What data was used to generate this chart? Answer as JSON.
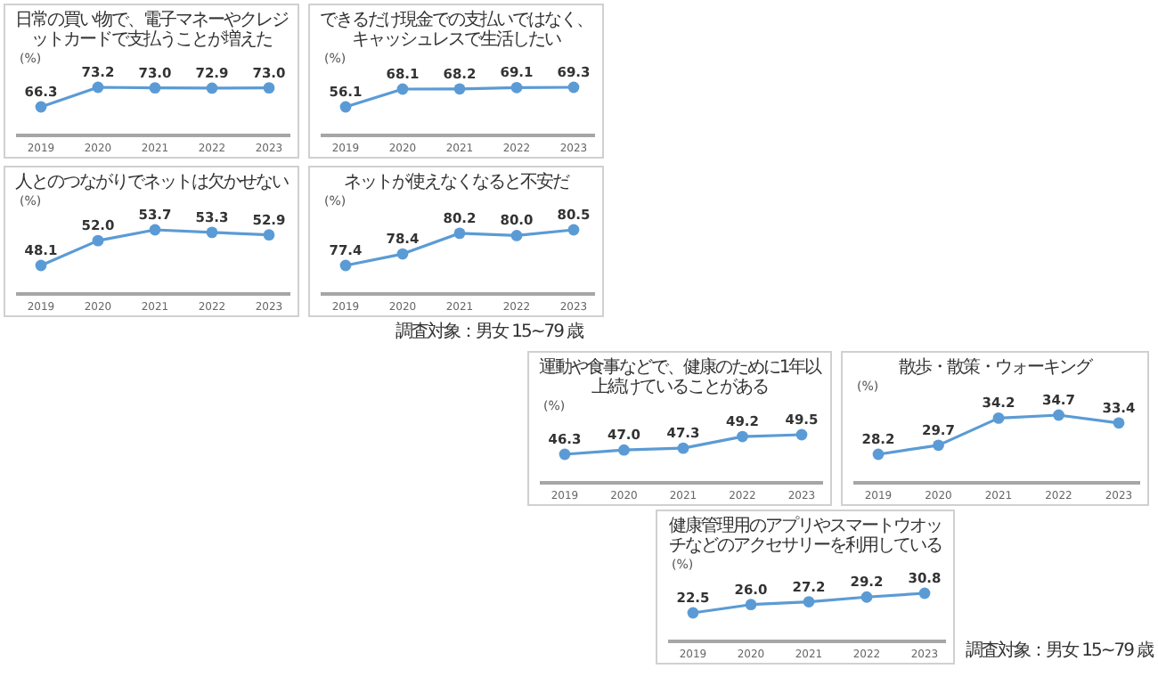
{
  "chart_data": [
    {
      "type": "line",
      "title": "日常の買い物で、電子マネーやクレジットカードで支払うことが増えた",
      "ylabel": "(%)",
      "categories": [
        "2019",
        "2020",
        "2021",
        "2022",
        "2023"
      ],
      "series": [
        {
          "color": "#5b9bd5",
          "values": [
            66.3,
            73.2,
            73.0,
            72.9,
            73.0
          ],
          "value_labels": [
            "66.3",
            "73.2",
            "73.0",
            "72.9",
            "73.0"
          ]
        }
      ],
      "marker": "circle",
      "line_style": "solid"
    },
    {
      "type": "line",
      "title": "できるだけ現金での支払いではなく、キャッシュレスで生活したい",
      "ylabel": "(%)",
      "categories": [
        "2019",
        "2020",
        "2021",
        "2022",
        "2023"
      ],
      "series": [
        {
          "color": "#5b9bd5",
          "values": [
            56.1,
            68.1,
            68.2,
            69.1,
            69.3
          ],
          "value_labels": [
            "56.1",
            "68.1",
            "68.2",
            "69.1",
            "69.3"
          ]
        }
      ],
      "marker": "circle",
      "line_style": "solid"
    },
    {
      "type": "line",
      "title": "人とのつながりでネットは欠かせない",
      "ylabel": "(%)",
      "categories": [
        "2019",
        "2020",
        "2021",
        "2022",
        "2023"
      ],
      "series": [
        {
          "color": "#5b9bd5",
          "values": [
            48.1,
            52.0,
            53.7,
            53.3,
            52.9
          ],
          "value_labels": [
            "48.1",
            "52.0",
            "53.7",
            "53.3",
            "52.9"
          ]
        }
      ],
      "marker": "circle",
      "line_style": "solid"
    },
    {
      "type": "line",
      "title": "ネットが使えなくなると不安だ",
      "ylabel": "(%)",
      "categories": [
        "2019",
        "2020",
        "2021",
        "2022",
        "2023"
      ],
      "series": [
        {
          "color": "#5b9bd5",
          "values": [
            77.4,
            78.4,
            80.2,
            80.0,
            80.5
          ],
          "value_labels": [
            "77.4",
            "78.4",
            "80.2",
            "80.0",
            "80.5"
          ]
        }
      ],
      "marker": "circle",
      "line_style": "solid",
      "annotations": [
        "調査対象：男女 15~79 歳"
      ]
    },
    {
      "type": "line",
      "title": "運動や食事などで、健康のために1年以上続けていることがある",
      "ylabel": "(%)",
      "categories": [
        "2019",
        "2020",
        "2021",
        "2022",
        "2023"
      ],
      "series": [
        {
          "color": "#5b9bd5",
          "values": [
            46.3,
            47.0,
            47.3,
            49.2,
            49.5
          ],
          "value_labels": [
            "46.3",
            "47.0",
            "47.3",
            "49.2",
            "49.5"
          ]
        }
      ],
      "marker": "circle",
      "line_style": "solid"
    },
    {
      "type": "line",
      "title": "散歩・散策・ウォーキング",
      "ylabel": "(%)",
      "categories": [
        "2019",
        "2020",
        "2021",
        "2022",
        "2023"
      ],
      "series": [
        {
          "color": "#5b9bd5",
          "values": [
            28.2,
            29.7,
            34.2,
            34.7,
            33.4
          ],
          "value_labels": [
            "28.2",
            "29.7",
            "34.2",
            "34.7",
            "33.4"
          ]
        }
      ],
      "marker": "circle",
      "line_style": "solid"
    },
    {
      "type": "line",
      "title": "健康管理用のアプリやスマートウオッチなどのアクセサリーを利用している",
      "ylabel": "(%)",
      "categories": [
        "2019",
        "2020",
        "2021",
        "2022",
        "2023"
      ],
      "series": [
        {
          "color": "#5b9bd5",
          "values": [
            22.5,
            26.0,
            27.2,
            29.2,
            30.8
          ],
          "value_labels": [
            "22.5",
            "26.0",
            "27.2",
            "29.2",
            "30.8"
          ]
        }
      ],
      "marker": "circle",
      "line_style": "solid",
      "annotations": [
        "調査対象：男女 15~79 歳"
      ]
    }
  ]
}
